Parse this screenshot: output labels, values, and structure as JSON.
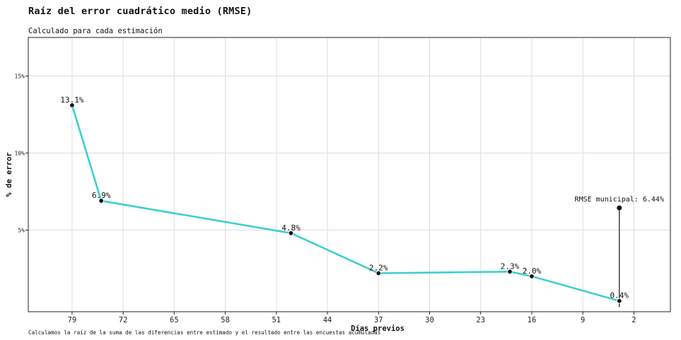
{
  "header": {
    "title": "Raíz del error cuadrático medio (RMSE)",
    "subtitle": "Calculado para cada estimación"
  },
  "footnote": "Calculamos la raíz de la suma de las diferencias entre estimado y el resultado entre las encuestas acumuladas",
  "chart_data": {
    "type": "line",
    "title": "Raíz del error cuadrático medio (RMSE)",
    "subtitle": "Calculado para cada estimación",
    "xlabel": "Días previos",
    "ylabel": "% de error",
    "x_reversed": true,
    "xlim": [
      85,
      -3
    ],
    "ylim": [
      -0.3,
      17.5
    ],
    "xticks": [
      79,
      72,
      65,
      58,
      51,
      44,
      37,
      30,
      23,
      16,
      9,
      2
    ],
    "yticks": [
      5,
      10,
      15
    ],
    "ytick_labels": [
      "5%",
      "10%",
      "15%"
    ],
    "grid": true,
    "line_color": "#3dcfcf",
    "series": [
      {
        "x": [
          79,
          75,
          49,
          37,
          19,
          16,
          4
        ],
        "y": [
          13.1,
          6.9,
          4.8,
          2.2,
          2.3,
          2.0,
          0.4
        ],
        "labels": [
          "13.1%",
          "6.9%",
          "4.8%",
          "2.2%",
          "2.3%",
          "2.0%",
          "0.4%"
        ]
      }
    ],
    "annotation": {
      "label": "RMSE municipal: 6.44%",
      "x": 4,
      "y": 6.44
    }
  }
}
